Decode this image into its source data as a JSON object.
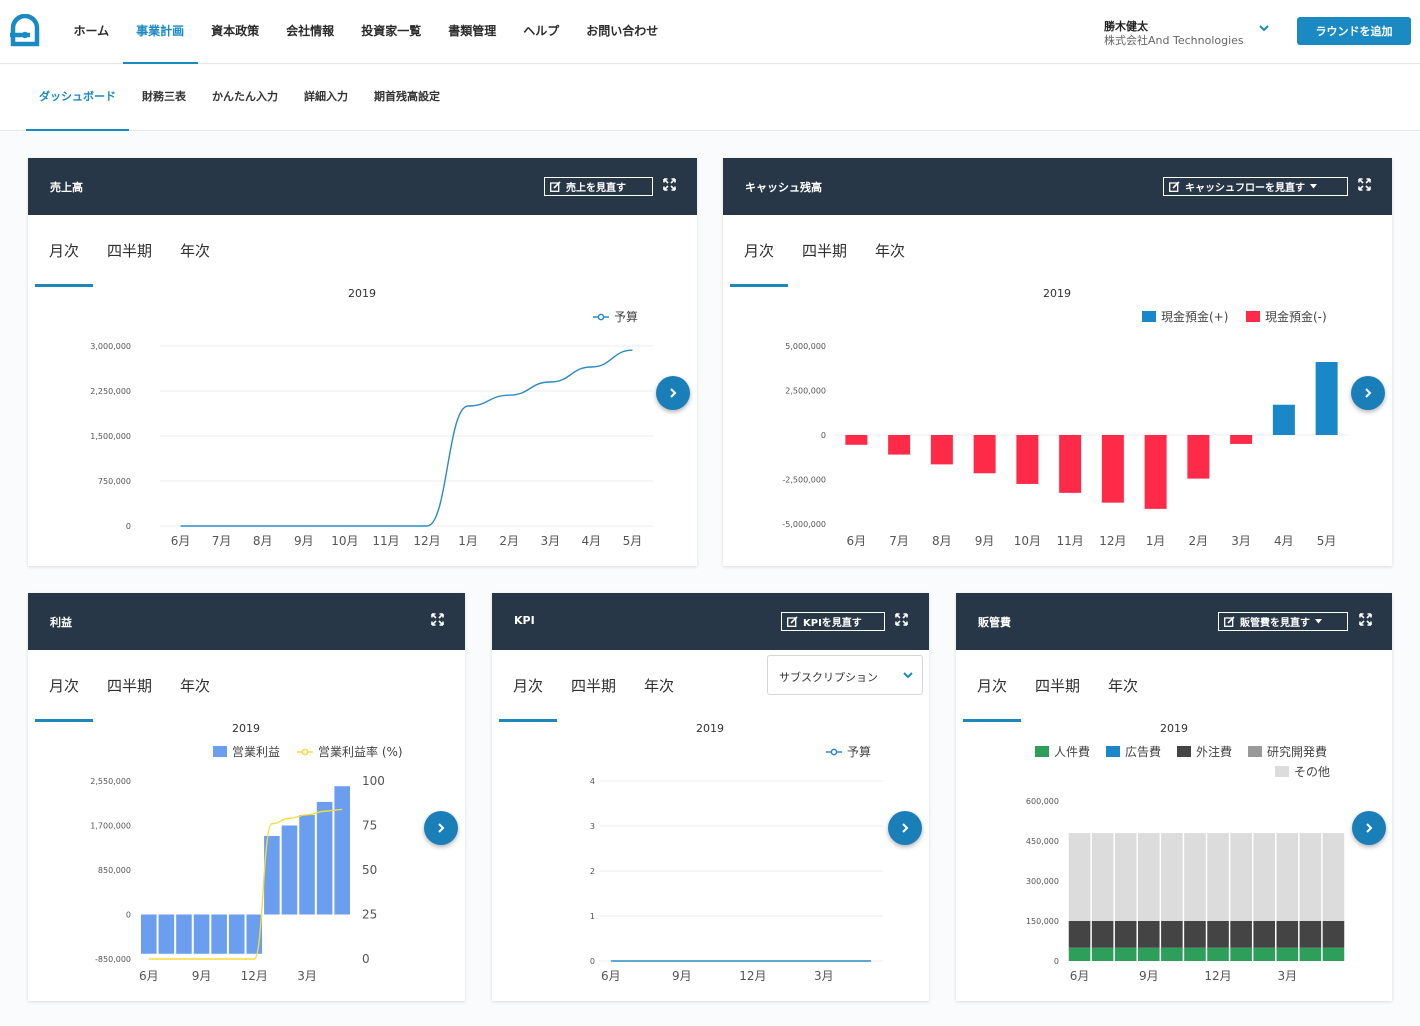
{
  "header": {
    "nav": [
      "ホーム",
      "事業計画",
      "資本政策",
      "会社情報",
      "投資家一覧",
      "書類管理",
      "ヘルプ",
      "お問い合わせ"
    ],
    "active_nav": 1,
    "user_name": "勝木健太",
    "company": "株式会社And Technologies",
    "add_round": "ラウンドを追加"
  },
  "subnav": {
    "items": [
      "ダッシュボード",
      "財務三表",
      "かんたん入力",
      "詳細入力",
      "期首残高設定"
    ],
    "active": 0
  },
  "tabs": [
    "月次",
    "四半期",
    "年次"
  ],
  "cards": {
    "sales": {
      "title": "売上高",
      "button": "売上を見直す"
    },
    "cash": {
      "title": "キャッシュ残高",
      "button": "キャッシュフローを見直す"
    },
    "profit": {
      "title": "利益"
    },
    "kpi": {
      "title": "KPI",
      "button": "KPIを見直す",
      "select": "サブスクリプション"
    },
    "sga": {
      "title": "販管費",
      "button": "販管費を見直す"
    }
  },
  "colors": {
    "header_bg": "#273747",
    "accent": "#1a8ac3",
    "line": "#2c8ac6",
    "cash_pos": "#1a87c9",
    "cash_neg": "#ff2a47",
    "profit_bar": "#6b9eef",
    "profit_line": "#f5dc3a",
    "personnel": "#2e9e5b",
    "advertising": "#1a87c9",
    "outsourcing": "#444444",
    "rnd": "#999999",
    "other": "#dcdcdc"
  },
  "chart_data": [
    {
      "id": "sales",
      "type": "line",
      "title": "2019",
      "categories": [
        "6月",
        "7月",
        "8月",
        "9月",
        "10月",
        "11月",
        "12月",
        "1月",
        "2月",
        "3月",
        "4月",
        "5月"
      ],
      "series": [
        {
          "name": "予算",
          "values": [
            0,
            0,
            0,
            0,
            0,
            0,
            0,
            2000000,
            2180000,
            2400000,
            2650000,
            2930000
          ]
        }
      ],
      "yticks": [
        "0",
        "750,000",
        "1,500,000",
        "2,250,000",
        "3,000,000"
      ],
      "ylim": [
        0,
        3000000
      ],
      "legend": "top-right"
    },
    {
      "id": "cash",
      "type": "bar",
      "title": "2019",
      "categories": [
        "6月",
        "7月",
        "8月",
        "9月",
        "10月",
        "11月",
        "12月",
        "1月",
        "2月",
        "3月",
        "4月",
        "5月"
      ],
      "values": [
        -550000,
        -1100000,
        -1650000,
        -2150000,
        -2750000,
        -3250000,
        -3800000,
        -4150000,
        -2450000,
        -500000,
        1700000,
        4100000
      ],
      "series": [
        {
          "name": "現金預金(+)"
        },
        {
          "name": "現金預金(-)"
        }
      ],
      "yticks": [
        "-5,000,000",
        "-2,500,000",
        "0",
        "2,500,000",
        "5,000,000"
      ],
      "ylim": [
        -5000000,
        5000000
      ],
      "legend": "top-right"
    },
    {
      "id": "profit",
      "type": "bar",
      "title": "2019",
      "categories": [
        "6月",
        "7月",
        "8月",
        "9月",
        "10月",
        "11月",
        "12月",
        "1月",
        "2月",
        "3月",
        "4月",
        "5月"
      ],
      "x_tick_labels": [
        "6月",
        "9月",
        "12月",
        "3月"
      ],
      "series": [
        {
          "name": "営業利益",
          "type": "bar",
          "values": [
            -750000,
            -750000,
            -750000,
            -750000,
            -750000,
            -750000,
            -750000,
            1500000,
            1700000,
            1900000,
            2150000,
            2450000
          ]
        },
        {
          "name": "営業利益率 (%)",
          "type": "line",
          "axis": "right",
          "values": [
            0,
            0,
            0,
            0,
            0,
            0,
            0,
            76,
            79,
            81,
            83,
            84
          ]
        }
      ],
      "yticks": [
        "-850,000",
        "0",
        "850,000",
        "1,700,000",
        "2,550,000"
      ],
      "ylim": [
        -850000,
        2550000
      ],
      "y2ticks": [
        "0",
        "25",
        "50",
        "75",
        "100"
      ],
      "y2lim": [
        0,
        100
      ],
      "legend": "top"
    },
    {
      "id": "kpi",
      "type": "line",
      "title": "2019",
      "categories": [
        "6月",
        "7月",
        "8月",
        "9月",
        "10月",
        "11月",
        "12月",
        "1月",
        "2月",
        "3月",
        "4月",
        "5月"
      ],
      "x_tick_labels": [
        "6月",
        "9月",
        "12月",
        "3月"
      ],
      "series": [
        {
          "name": "予算",
          "values": [
            0,
            0,
            0,
            0,
            0,
            0,
            0,
            0,
            0,
            0,
            0,
            0
          ]
        }
      ],
      "yticks": [
        "0",
        "1",
        "2",
        "3",
        "4"
      ],
      "ylim": [
        0,
        4
      ],
      "legend": "top-right"
    },
    {
      "id": "sga",
      "type": "bar",
      "stacked": true,
      "title": "2019",
      "categories": [
        "6月",
        "7月",
        "8月",
        "9月",
        "10月",
        "11月",
        "12月",
        "1月",
        "2月",
        "3月",
        "4月",
        "5月"
      ],
      "x_tick_labels": [
        "6月",
        "9月",
        "12月",
        "3月"
      ],
      "series": [
        {
          "name": "人件費",
          "values": [
            50000,
            50000,
            50000,
            50000,
            50000,
            50000,
            50000,
            50000,
            50000,
            50000,
            50000,
            50000
          ]
        },
        {
          "name": "広告費",
          "values": [
            0,
            0,
            0,
            0,
            0,
            0,
            0,
            0,
            0,
            0,
            0,
            0
          ]
        },
        {
          "name": "外注費",
          "values": [
            100000,
            100000,
            100000,
            100000,
            100000,
            100000,
            100000,
            100000,
            100000,
            100000,
            100000,
            100000
          ]
        },
        {
          "name": "研究開発費",
          "values": [
            0,
            0,
            0,
            0,
            0,
            0,
            0,
            0,
            0,
            0,
            0,
            0
          ]
        },
        {
          "name": "その他",
          "values": [
            330000,
            330000,
            330000,
            330000,
            330000,
            330000,
            330000,
            330000,
            330000,
            330000,
            330000,
            330000
          ]
        }
      ],
      "yticks": [
        "0",
        "150,000",
        "300,000",
        "450,000",
        "600,000"
      ],
      "ylim": [
        0,
        600000
      ],
      "legend": "top"
    }
  ]
}
